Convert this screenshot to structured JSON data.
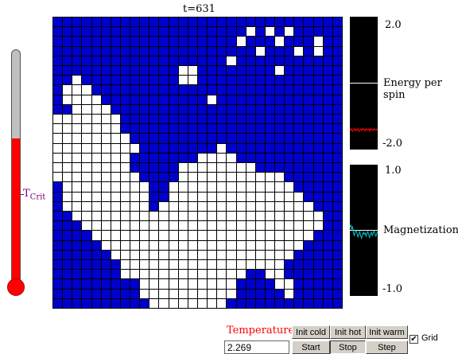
{
  "time_label": "t=631",
  "lattice": {
    "size": 30,
    "rows": [
      "111111111111111111111111111111",
      "111111111111111111110101011111",
      "111111111111111111101110111011",
      "111111111111111111111011101011",
      "111111111111111111011111111111",
      "111111111111100111111110111111",
      "110111111111100111111111111111",
      "100011111111111111111111111111",
      "100001111111111101111111111111",
      "110000111111111111111111111111",
      "000000011111111111111111111111",
      "000000011111111111111111111111",
      "000000001111111111111111111111",
      "000000000111111110111111111111",
      "000000001111111000011111111111",
      "000000001111100000000111111111",
      "000000000111100000000000111111",
      "100000000011000000000000011111",
      "100000000011000000000000001111",
      "100000000010000000000000000111",
      "110000000000000000000000000011",
      "111000000000000000000000000011",
      "111100000000000000000000000111",
      "111110000000000000000000001111",
      "111111000000000000000000011111",
      "111111100000000000000000111111",
      "111111100000000000001100111111",
      "111111111000000000011110011111",
      "111111111000000000011111011111",
      "111111111100000000111111111111"
    ]
  },
  "thermometer": {
    "tcrit_label": "T",
    "tcrit_sub": "Crit",
    "fill_fraction": 0.62
  },
  "energy_plot": {
    "title": "Energy per spin",
    "y_max": "2.0",
    "y_min": "-2.0",
    "ylim": [
      -2.0,
      2.0
    ],
    "trace_color": "#ff0000",
    "values": [
      -1.35,
      -1.42,
      -1.38,
      -1.45,
      -1.4,
      -1.36,
      -1.44,
      -1.39,
      -1.41,
      -1.37,
      -1.46,
      -1.4,
      -1.38,
      -1.43,
      -1.36,
      -1.41,
      -1.39,
      -1.44,
      -1.37,
      -1.42,
      -1.4,
      -1.38,
      -1.45,
      -1.36,
      -1.41,
      -1.39,
      -1.43,
      -1.37,
      -1.4,
      -1.42,
      -1.38,
      -1.41
    ]
  },
  "magnetization_plot": {
    "title": "Magnetization",
    "y_max": "1.0",
    "y_min": "-1.0",
    "ylim": [
      -1.0,
      1.0
    ],
    "trace_color": "#00c8c8",
    "values": [
      0.05,
      0.08,
      0.02,
      0.06,
      -0.04,
      -0.08,
      -0.02,
      0.0,
      -0.05,
      -0.1,
      -0.06,
      -0.02,
      -0.08,
      -0.12,
      -0.07,
      -0.03,
      -0.06,
      -0.04,
      -0.09,
      -0.05,
      -0.02,
      -0.07,
      -0.11,
      -0.06,
      -0.03,
      -0.08,
      -0.04,
      -0.01,
      -0.06,
      -0.09,
      -0.05,
      -0.02
    ]
  },
  "controls": {
    "temperature_label": "Temperature",
    "temperature_value": "2.269",
    "init_cold": "Init cold",
    "init_hot": "Init hot",
    "init_warm": "Init warm",
    "start": "Start",
    "stop": "Stop",
    "step": "Step",
    "grid_label": "Grid",
    "grid_checked": true
  }
}
